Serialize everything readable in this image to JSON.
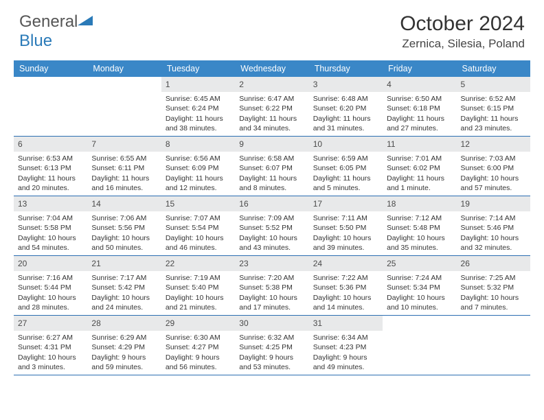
{
  "logo": {
    "text1": "General",
    "text2": "Blue"
  },
  "title": "October 2024",
  "location": "Zernica, Silesia, Poland",
  "colors": {
    "header_bg": "#3a87c7",
    "row_border": "#2a6db1",
    "daynum_bg": "#e8e9ea",
    "logo_blue": "#2a7ab8"
  },
  "dayHeaders": [
    "Sunday",
    "Monday",
    "Tuesday",
    "Wednesday",
    "Thursday",
    "Friday",
    "Saturday"
  ],
  "weeks": [
    [
      null,
      null,
      {
        "n": "1",
        "sr": "Sunrise: 6:45 AM",
        "ss": "Sunset: 6:24 PM",
        "dl": "Daylight: 11 hours and 38 minutes."
      },
      {
        "n": "2",
        "sr": "Sunrise: 6:47 AM",
        "ss": "Sunset: 6:22 PM",
        "dl": "Daylight: 11 hours and 34 minutes."
      },
      {
        "n": "3",
        "sr": "Sunrise: 6:48 AM",
        "ss": "Sunset: 6:20 PM",
        "dl": "Daylight: 11 hours and 31 minutes."
      },
      {
        "n": "4",
        "sr": "Sunrise: 6:50 AM",
        "ss": "Sunset: 6:18 PM",
        "dl": "Daylight: 11 hours and 27 minutes."
      },
      {
        "n": "5",
        "sr": "Sunrise: 6:52 AM",
        "ss": "Sunset: 6:15 PM",
        "dl": "Daylight: 11 hours and 23 minutes."
      }
    ],
    [
      {
        "n": "6",
        "sr": "Sunrise: 6:53 AM",
        "ss": "Sunset: 6:13 PM",
        "dl": "Daylight: 11 hours and 20 minutes."
      },
      {
        "n": "7",
        "sr": "Sunrise: 6:55 AM",
        "ss": "Sunset: 6:11 PM",
        "dl": "Daylight: 11 hours and 16 minutes."
      },
      {
        "n": "8",
        "sr": "Sunrise: 6:56 AM",
        "ss": "Sunset: 6:09 PM",
        "dl": "Daylight: 11 hours and 12 minutes."
      },
      {
        "n": "9",
        "sr": "Sunrise: 6:58 AM",
        "ss": "Sunset: 6:07 PM",
        "dl": "Daylight: 11 hours and 8 minutes."
      },
      {
        "n": "10",
        "sr": "Sunrise: 6:59 AM",
        "ss": "Sunset: 6:05 PM",
        "dl": "Daylight: 11 hours and 5 minutes."
      },
      {
        "n": "11",
        "sr": "Sunrise: 7:01 AM",
        "ss": "Sunset: 6:02 PM",
        "dl": "Daylight: 11 hours and 1 minute."
      },
      {
        "n": "12",
        "sr": "Sunrise: 7:03 AM",
        "ss": "Sunset: 6:00 PM",
        "dl": "Daylight: 10 hours and 57 minutes."
      }
    ],
    [
      {
        "n": "13",
        "sr": "Sunrise: 7:04 AM",
        "ss": "Sunset: 5:58 PM",
        "dl": "Daylight: 10 hours and 54 minutes."
      },
      {
        "n": "14",
        "sr": "Sunrise: 7:06 AM",
        "ss": "Sunset: 5:56 PM",
        "dl": "Daylight: 10 hours and 50 minutes."
      },
      {
        "n": "15",
        "sr": "Sunrise: 7:07 AM",
        "ss": "Sunset: 5:54 PM",
        "dl": "Daylight: 10 hours and 46 minutes."
      },
      {
        "n": "16",
        "sr": "Sunrise: 7:09 AM",
        "ss": "Sunset: 5:52 PM",
        "dl": "Daylight: 10 hours and 43 minutes."
      },
      {
        "n": "17",
        "sr": "Sunrise: 7:11 AM",
        "ss": "Sunset: 5:50 PM",
        "dl": "Daylight: 10 hours and 39 minutes."
      },
      {
        "n": "18",
        "sr": "Sunrise: 7:12 AM",
        "ss": "Sunset: 5:48 PM",
        "dl": "Daylight: 10 hours and 35 minutes."
      },
      {
        "n": "19",
        "sr": "Sunrise: 7:14 AM",
        "ss": "Sunset: 5:46 PM",
        "dl": "Daylight: 10 hours and 32 minutes."
      }
    ],
    [
      {
        "n": "20",
        "sr": "Sunrise: 7:16 AM",
        "ss": "Sunset: 5:44 PM",
        "dl": "Daylight: 10 hours and 28 minutes."
      },
      {
        "n": "21",
        "sr": "Sunrise: 7:17 AM",
        "ss": "Sunset: 5:42 PM",
        "dl": "Daylight: 10 hours and 24 minutes."
      },
      {
        "n": "22",
        "sr": "Sunrise: 7:19 AM",
        "ss": "Sunset: 5:40 PM",
        "dl": "Daylight: 10 hours and 21 minutes."
      },
      {
        "n": "23",
        "sr": "Sunrise: 7:20 AM",
        "ss": "Sunset: 5:38 PM",
        "dl": "Daylight: 10 hours and 17 minutes."
      },
      {
        "n": "24",
        "sr": "Sunrise: 7:22 AM",
        "ss": "Sunset: 5:36 PM",
        "dl": "Daylight: 10 hours and 14 minutes."
      },
      {
        "n": "25",
        "sr": "Sunrise: 7:24 AM",
        "ss": "Sunset: 5:34 PM",
        "dl": "Daylight: 10 hours and 10 minutes."
      },
      {
        "n": "26",
        "sr": "Sunrise: 7:25 AM",
        "ss": "Sunset: 5:32 PM",
        "dl": "Daylight: 10 hours and 7 minutes."
      }
    ],
    [
      {
        "n": "27",
        "sr": "Sunrise: 6:27 AM",
        "ss": "Sunset: 4:31 PM",
        "dl": "Daylight: 10 hours and 3 minutes."
      },
      {
        "n": "28",
        "sr": "Sunrise: 6:29 AM",
        "ss": "Sunset: 4:29 PM",
        "dl": "Daylight: 9 hours and 59 minutes."
      },
      {
        "n": "29",
        "sr": "Sunrise: 6:30 AM",
        "ss": "Sunset: 4:27 PM",
        "dl": "Daylight: 9 hours and 56 minutes."
      },
      {
        "n": "30",
        "sr": "Sunrise: 6:32 AM",
        "ss": "Sunset: 4:25 PM",
        "dl": "Daylight: 9 hours and 53 minutes."
      },
      {
        "n": "31",
        "sr": "Sunrise: 6:34 AM",
        "ss": "Sunset: 4:23 PM",
        "dl": "Daylight: 9 hours and 49 minutes."
      },
      null,
      null
    ]
  ]
}
